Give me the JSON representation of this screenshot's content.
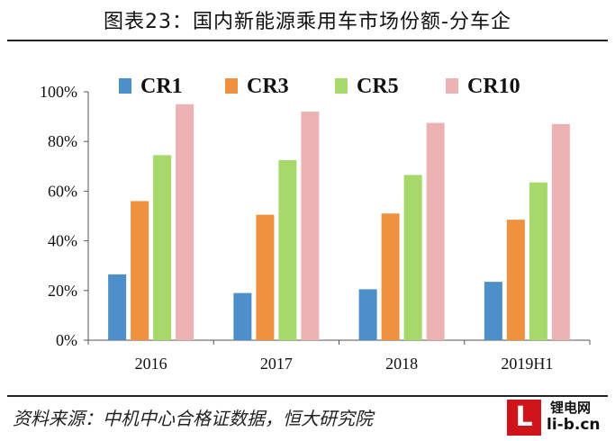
{
  "title": "图表23：国内新能源乘用车市场份额-分车企",
  "source": "资料来源：中机中心合格证数据，恒大研究院",
  "logo": {
    "mark": "L",
    "cn": "锂电网",
    "url": "li-b.cn"
  },
  "colors": {
    "CR1": "#4d8fc8",
    "CR3": "#f0913f",
    "CR5": "#a6d96a",
    "CR10": "#ecb2b3"
  },
  "chart_data": {
    "type": "bar",
    "title": "",
    "xlabel": "",
    "ylabel": "",
    "categories": [
      "2016",
      "2017",
      "2018",
      "2019H1"
    ],
    "series": [
      {
        "name": "CR1",
        "values": [
          26.5,
          19.0,
          20.5,
          23.5
        ]
      },
      {
        "name": "CR3",
        "values": [
          56.0,
          50.5,
          51.0,
          48.5
        ]
      },
      {
        "name": "CR5",
        "values": [
          74.5,
          72.5,
          66.5,
          63.5
        ]
      },
      {
        "name": "CR10",
        "values": [
          95.0,
          92.0,
          87.5,
          87.0
        ]
      }
    ],
    "ylim": [
      0,
      100
    ],
    "yticks": [
      "0%",
      "20%",
      "40%",
      "60%",
      "80%",
      "100%"
    ],
    "grid": false,
    "legend": "top"
  }
}
